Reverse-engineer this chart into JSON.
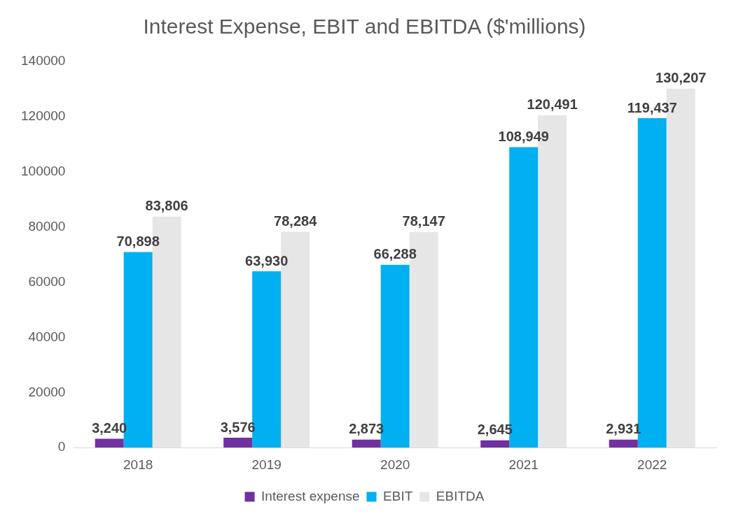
{
  "chart_data": {
    "type": "bar",
    "title": "Interest Expense, EBIT and EBITDA ($'millions)",
    "categories": [
      "2018",
      "2019",
      "2020",
      "2021",
      "2022"
    ],
    "series": [
      {
        "name": "Interest expense",
        "color": "#7030a0",
        "values": [
          3240,
          3576,
          2873,
          2645,
          2931
        ],
        "value_labels": [
          "3,240",
          "3,576",
          "2,873",
          "2,645",
          "2,931"
        ]
      },
      {
        "name": "EBIT",
        "color": "#00b0f0",
        "values": [
          70898,
          63930,
          66288,
          108949,
          119437
        ],
        "value_labels": [
          "70,898",
          "63,930",
          "66,288",
          "108,949",
          "119,437"
        ]
      },
      {
        "name": "EBITDA",
        "color": "#e7e6e6",
        "values": [
          83806,
          78284,
          78147,
          120491,
          130207
        ],
        "value_labels": [
          "83,806",
          "78,284",
          "78,147",
          "120,491",
          "130,207"
        ]
      }
    ],
    "ylim": [
      0,
      140000
    ],
    "yticks": [
      0,
      20000,
      40000,
      60000,
      80000,
      100000,
      120000,
      140000
    ],
    "grid": false,
    "legend": "bottom"
  }
}
